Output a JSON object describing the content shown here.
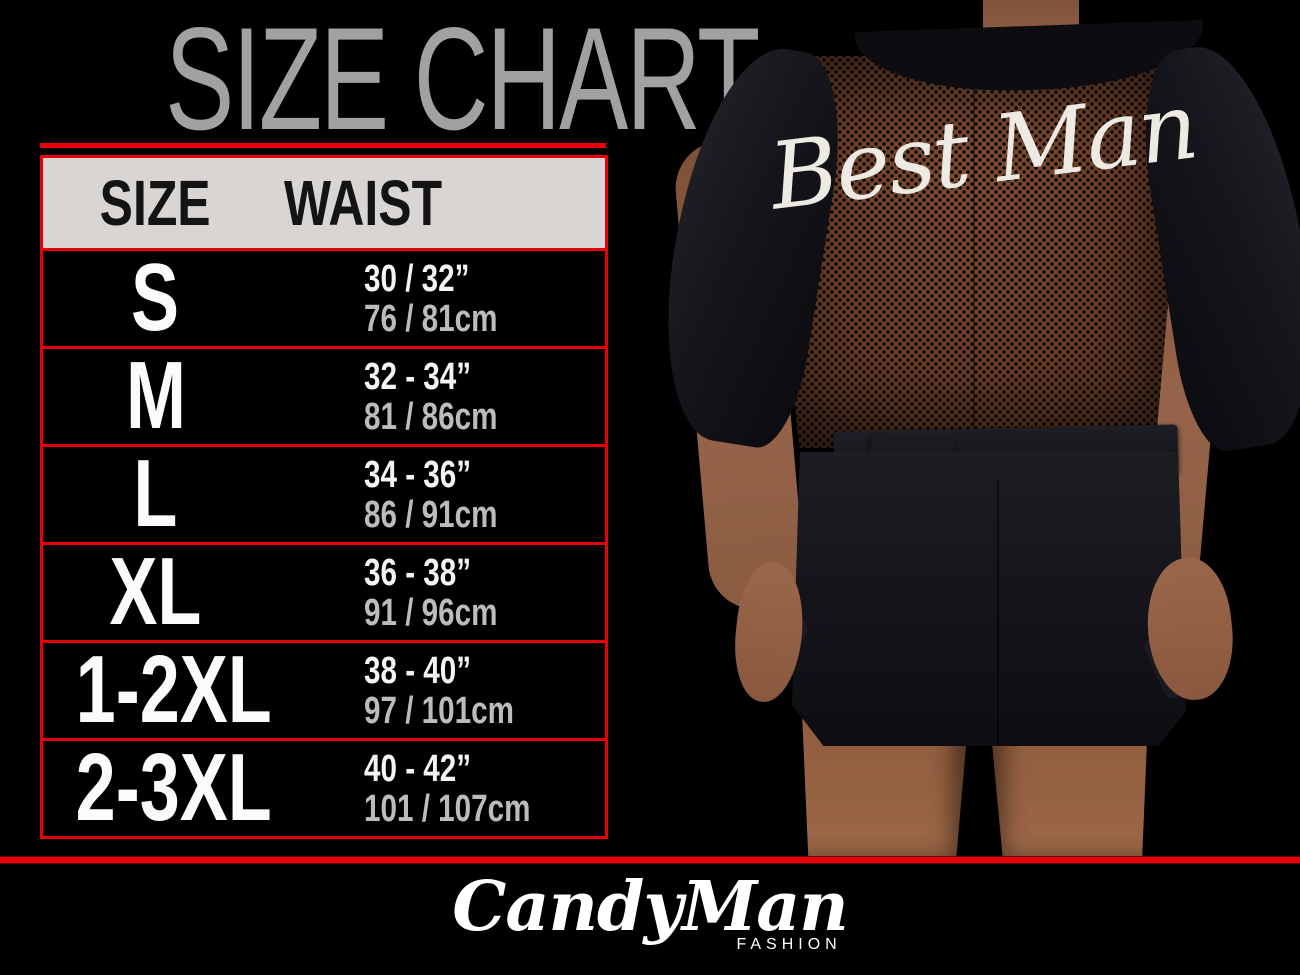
{
  "title": "SIZE CHART",
  "table": {
    "headers": {
      "size": "SIZE",
      "waist": "WAIST"
    },
    "rows": [
      {
        "size": "S",
        "waist_in": "30 / 32”",
        "waist_cm": "76 / 81cm"
      },
      {
        "size": "M",
        "waist_in": "32 - 34”",
        "waist_cm": "81 / 86cm"
      },
      {
        "size": "L",
        "waist_in": "34 - 36”",
        "waist_cm": "86 / 91cm"
      },
      {
        "size": "XL",
        "waist_in": "36 - 38”",
        "waist_cm": "91 / 96cm"
      },
      {
        "size": "1-2XL",
        "waist_in": "38 - 40”",
        "waist_cm": "97 / 101cm"
      },
      {
        "size": "2-3XL",
        "waist_in": "40 - 42”",
        "waist_cm": "101 / 107cm"
      }
    ]
  },
  "photo": {
    "garment_text": "Best Man"
  },
  "brand": {
    "name": "CandyMan",
    "tagline": "FASHION"
  },
  "colors": {
    "accent_red": "#e8000b",
    "header_bg": "#d8d5d3",
    "title_gray": "#a1a1a3",
    "cm_gray": "#bcbcbc"
  }
}
